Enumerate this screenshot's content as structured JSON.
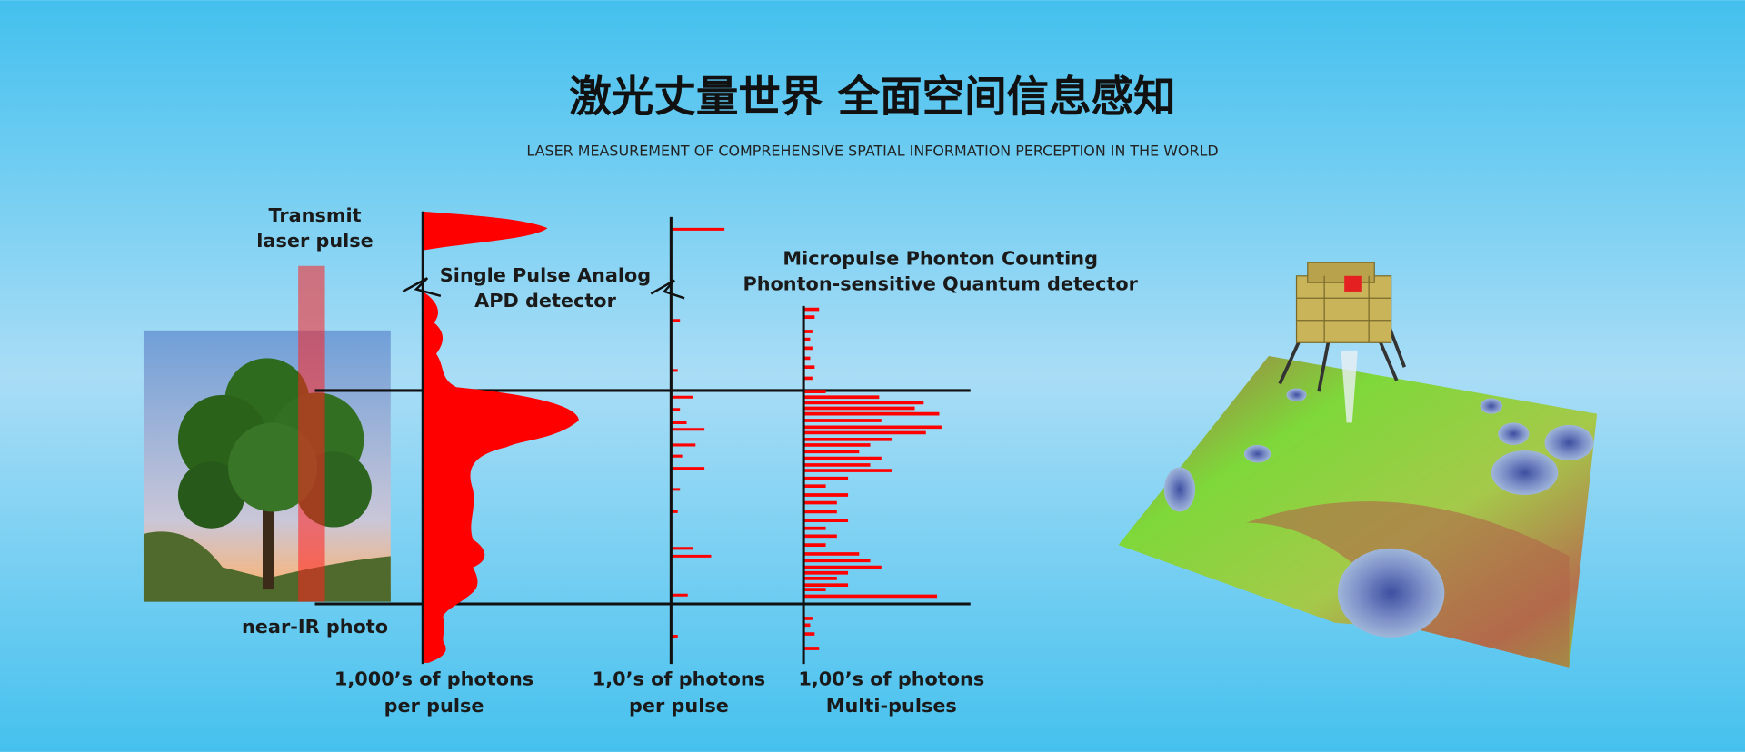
{
  "header": {
    "title": "激光丈量世界 全面空间信息感知",
    "subtitle": "LASER MEASUREMENT OF COMPREHENSIVE SPATIAL INFORMATION PERCEPTION IN THE WORLD"
  },
  "diagram": {
    "transmit_label": [
      "Transmit",
      "laser pulse"
    ],
    "photo_label": "near-IR photo",
    "analog_label": [
      "Single Pulse Analog",
      "APD detector"
    ],
    "micropulse_label": [
      "Micropulse Phonton Counting",
      "Phonton-sensitive Quantum detector"
    ],
    "captions": [
      [
        "1,000’s of photons",
        "per pulse"
      ],
      [
        "1,0’s of photons",
        "per pulse"
      ],
      [
        "1,00’s of photons",
        "Multi-pulses"
      ]
    ]
  }
}
